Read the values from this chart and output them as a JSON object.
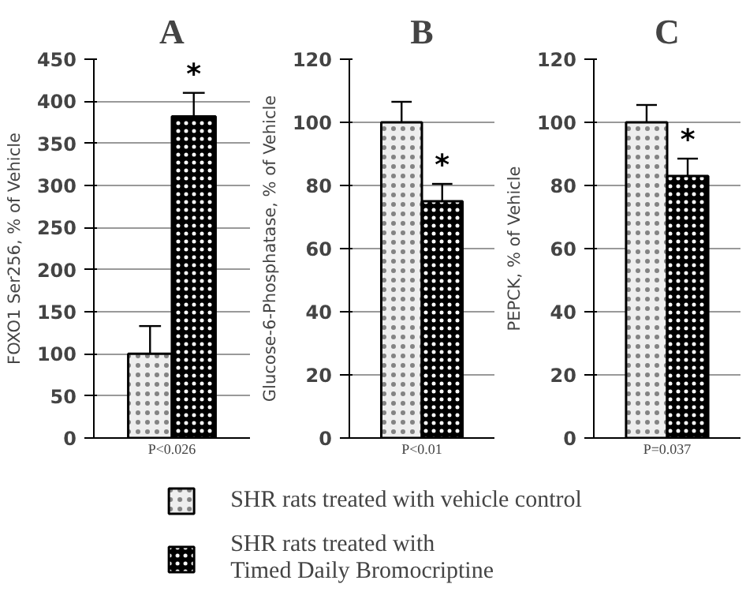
{
  "chart_data": [
    {
      "type": "bar",
      "title": "A",
      "ylabel": "FOXO1 Ser256, % of Vehicle",
      "categories": [
        null
      ],
      "ylim": [
        0,
        450
      ],
      "yticks": [
        0,
        50,
        100,
        150,
        200,
        250,
        300,
        350,
        400,
        450
      ],
      "grid": "y",
      "legend": "bottom",
      "series": [
        {
          "name": "SHR rats treated with vehicle control",
          "color": "#eeeeee",
          "values": [
            100
          ],
          "errors": [
            [
              100,
              133
            ]
          ]
        },
        {
          "name": "SHR rats treated with\nTimed Daily Bromocriptine",
          "color": "#000000",
          "values": [
            382
          ],
          "errors": [
            [
              382,
              410
            ]
          ]
        }
      ],
      "annotations": [
        "*",
        "P<0.026"
      ]
    },
    {
      "type": "bar",
      "title": "B",
      "ylabel": "Glucose-6-Phosphatase, % of Vehicle",
      "categories": [
        null
      ],
      "ylim": [
        0,
        120
      ],
      "yticks": [
        0,
        20,
        40,
        60,
        80,
        100,
        120
      ],
      "grid": "y",
      "series": [
        {
          "color": "#eeeeee",
          "values": [
            100
          ],
          "errors": [
            [
              100,
              106.5
            ]
          ]
        },
        {
          "color": "#000000",
          "values": [
            75
          ],
          "errors": [
            [
              75,
              80.5
            ]
          ]
        }
      ],
      "annotations": [
        "*",
        "P<0.01"
      ]
    },
    {
      "type": "bar",
      "title": "C",
      "ylabel": "PEPCK, % of Vehicle",
      "categories": [
        null
      ],
      "ylim": [
        0,
        120
      ],
      "yticks": [
        0,
        20,
        40,
        60,
        80,
        100,
        120
      ],
      "grid": "y",
      "series": [
        {
          "color": "#eeeeee",
          "values": [
            100
          ],
          "errors": [
            [
              100,
              105.5
            ]
          ]
        },
        {
          "color": "#000000",
          "values": [
            83
          ],
          "errors": [
            [
              83,
              88.5
            ]
          ]
        }
      ],
      "annotations": [
        "*",
        "P=0.037"
      ]
    }
  ]
}
